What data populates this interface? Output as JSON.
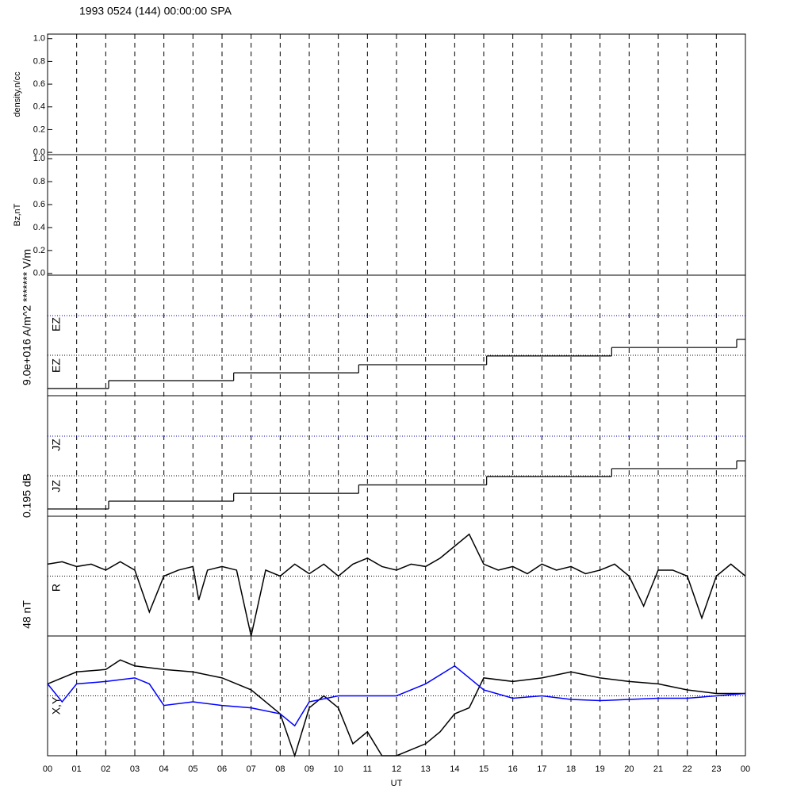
{
  "figure": {
    "title": "1993 0524 (144) 00:00:00 SPA",
    "x_label": "UT",
    "xlim": [
      0,
      24
    ],
    "xticks": [
      {
        "value": 0,
        "label": "00"
      },
      {
        "value": 1,
        "label": "01"
      },
      {
        "value": 2,
        "label": "02"
      },
      {
        "value": 3,
        "label": "03"
      },
      {
        "value": 4,
        "label": "04"
      },
      {
        "value": 5,
        "label": "05"
      },
      {
        "value": 6,
        "label": "06"
      },
      {
        "value": 7,
        "label": "07"
      },
      {
        "value": 8,
        "label": "08"
      },
      {
        "value": 9,
        "label": "09"
      },
      {
        "value": 10,
        "label": "10"
      },
      {
        "value": 11,
        "label": "11"
      },
      {
        "value": 12,
        "label": "12"
      },
      {
        "value": 13,
        "label": "13"
      },
      {
        "value": 14,
        "label": "14"
      },
      {
        "value": 15,
        "label": "15"
      },
      {
        "value": 16,
        "label": "16"
      },
      {
        "value": 17,
        "label": "17"
      },
      {
        "value": 18,
        "label": "18"
      },
      {
        "value": 19,
        "label": "19"
      },
      {
        "value": 20,
        "label": "20"
      },
      {
        "value": 21,
        "label": "21"
      },
      {
        "value": 22,
        "label": "22"
      },
      {
        "value": 23,
        "label": "23"
      },
      {
        "value": 24,
        "label": "00"
      }
    ]
  },
  "chart_data": [
    {
      "type": "line",
      "ylabel": "density,n/cc",
      "ylim": [
        -0.02,
        1.04
      ],
      "yticks": [
        {
          "value": 0,
          "label": "0.0"
        },
        {
          "value": 0.2,
          "label": "0.2"
        },
        {
          "value": 0.4,
          "label": "0.4"
        },
        {
          "value": 0.6,
          "label": "0.6"
        },
        {
          "value": 0.8,
          "label": "0.8"
        },
        {
          "value": 1,
          "label": "1.0"
        }
      ]
    },
    {
      "type": "line",
      "ylabel": "Bz,nT",
      "ylim": [
        -0.015,
        1.035
      ],
      "yticks": [
        {
          "value": 0,
          "label": "0.0"
        },
        {
          "value": 0.2,
          "label": "0.2"
        },
        {
          "value": 0.4,
          "label": "0.4"
        },
        {
          "value": 0.6,
          "label": "0.6"
        },
        {
          "value": 0.8,
          "label": "0.8"
        },
        {
          "value": 1,
          "label": "1.0"
        }
      ]
    },
    {
      "type": "step",
      "side_label": "9.0e+016 A/m^2  ******* V/m",
      "inner_labels": [
        "EZ",
        "EZ"
      ],
      "ylim": [
        0,
        1
      ],
      "series": [
        {
          "color": "#000000",
          "x": [
            0,
            2.1,
            6.4,
            10.7,
            15.1,
            19.4,
            23.7,
            24
          ],
          "values": [
            0.06,
            0.125,
            0.19,
            0.257,
            0.33,
            0.4,
            0.467,
            0.467
          ]
        }
      ]
    },
    {
      "type": "step",
      "side_label": "0.195 dB",
      "inner_labels": [
        "JZ",
        "JZ"
      ],
      "ylim": [
        0,
        1
      ],
      "series": [
        {
          "color": "#000000",
          "x": [
            0,
            2.1,
            6.4,
            10.7,
            15.1,
            19.4,
            23.7,
            24
          ],
          "values": [
            0.06,
            0.125,
            0.19,
            0.26,
            0.33,
            0.395,
            0.46,
            0.46
          ]
        }
      ]
    },
    {
      "type": "line",
      "side_label": "48 nT",
      "inner_labels": [
        "R"
      ],
      "ylim": [
        0,
        1
      ],
      "series": [
        {
          "color": "#000000",
          "x": [
            0,
            0.5,
            1,
            1.5,
            2,
            2.5,
            3,
            3.5,
            4,
            4.5,
            5,
            5.2,
            5.5,
            6,
            6.5,
            7,
            7.5,
            8,
            8.5,
            9,
            9.5,
            10,
            10.5,
            11,
            11.5,
            12,
            12.5,
            13,
            13.5,
            14,
            14.5,
            15,
            15.5,
            16,
            16.5,
            17,
            17.5,
            18,
            18.5,
            19,
            19.5,
            20,
            20.5,
            21,
            21.5,
            22,
            22.5,
            23,
            23.5,
            24
          ],
          "values": [
            0.6,
            0.62,
            0.58,
            0.6,
            0.55,
            0.62,
            0.55,
            0.2,
            0.5,
            0.55,
            0.58,
            0.3,
            0.55,
            0.58,
            0.55,
            0.0,
            0.55,
            0.5,
            0.6,
            0.52,
            0.6,
            0.5,
            0.6,
            0.65,
            0.58,
            0.55,
            0.6,
            0.58,
            0.65,
            0.75,
            0.85,
            0.6,
            0.55,
            0.58,
            0.52,
            0.6,
            0.55,
            0.58,
            0.52,
            0.55,
            0.6,
            0.5,
            0.25,
            0.55,
            0.55,
            0.5,
            0.15,
            0.5,
            0.6,
            0.5
          ]
        }
      ]
    },
    {
      "type": "line",
      "side_label": "",
      "inner_labels": [
        "X,Y"
      ],
      "ylim": [
        0,
        1
      ],
      "series": [
        {
          "color": "#000000",
          "x": [
            0,
            1,
            2,
            2.5,
            3,
            4,
            5,
            6,
            7,
            8,
            8.5,
            9,
            9.5,
            10,
            10.5,
            11,
            11.5,
            12,
            13,
            13.5,
            14,
            14.5,
            15,
            16,
            17,
            18,
            19,
            20,
            21,
            22,
            23,
            24
          ],
          "values": [
            0.6,
            0.7,
            0.72,
            0.8,
            0.75,
            0.72,
            0.7,
            0.65,
            0.55,
            0.35,
            0.0,
            0.4,
            0.5,
            0.4,
            0.1,
            0.2,
            0.0,
            0.0,
            0.1,
            0.2,
            0.35,
            0.4,
            0.65,
            0.62,
            0.65,
            0.7,
            0.65,
            0.62,
            0.6,
            0.55,
            0.52,
            0.52
          ]
        },
        {
          "color": "#0000ff",
          "x": [
            0,
            0.5,
            1,
            2,
            3,
            3.5,
            4,
            5,
            6,
            7,
            8,
            8.5,
            9,
            10,
            11,
            12,
            13,
            14,
            14.5,
            15,
            16,
            17,
            18,
            19,
            20,
            21,
            22,
            23,
            24
          ],
          "values": [
            0.6,
            0.45,
            0.6,
            0.62,
            0.65,
            0.6,
            0.42,
            0.45,
            0.42,
            0.4,
            0.35,
            0.25,
            0.45,
            0.5,
            0.5,
            0.5,
            0.6,
            0.75,
            0.65,
            0.55,
            0.48,
            0.5,
            0.47,
            0.46,
            0.47,
            0.48,
            0.48,
            0.5,
            0.52
          ]
        }
      ]
    }
  ]
}
